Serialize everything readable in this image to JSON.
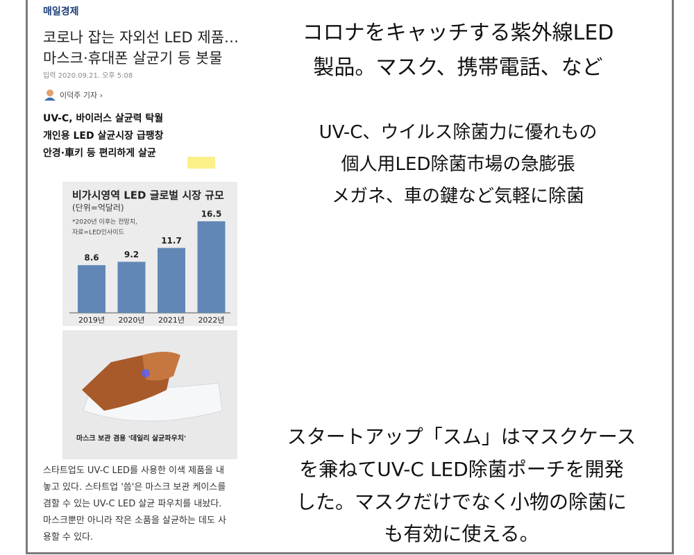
{
  "article": {
    "source": "매일경제",
    "headline": [
      "코로나 잡는 자외선 LED 제품…",
      "마스크·휴대폰 살균기 등 봇물"
    ],
    "date": "입력 2020.09.21. 오후 5:08",
    "reporter": "이덕주 기자 ›",
    "subheads": [
      "UV-C, 바이러스 살균력 탁월",
      "개인용 LED 살균시장 급팽창",
      "안경·車키 등 편리하게 살균"
    ],
    "photo_caption": "마스크 보관 겸용 '데일리 살균파우치'",
    "body": [
      "스타트업도 UV-C LED를 사용한 이색 제품을 내",
      "놓고 있다. 스타트업 '씀'은 마스크 보관 케이스를",
      "겸할 수 있는 UV-C LED 살균 파우치를 내놨다.",
      "마스크뿐만 아니라 작은 소품을 살균하는 데도 사",
      "용할 수 있다."
    ]
  },
  "chart_data": {
    "type": "bar",
    "title": "비가시영역 LED 글로벌 시장 규모",
    "subtitle": "(단위=억달러)",
    "note": [
      "*2020년 이후는 전망치,",
      "자료=LED인사이드"
    ],
    "categories": [
      "2019년",
      "2020년",
      "2021년",
      "2022년"
    ],
    "values": [
      8.6,
      9.2,
      11.7,
      16.5
    ],
    "color": "#6187b6"
  },
  "translation": {
    "title": [
      "コロナをキャッチする紫外線LED",
      "製品。マスク、携帯電話、など"
    ],
    "subheads": [
      "UV-C、ウイルス除菌力に優れもの",
      "個人用LED除菌市場の急膨張",
      "メガネ、車の鍵など気軽に除菌"
    ],
    "body": [
      "スタートアップ「スム」はマスクケース",
      "を兼ねてUV-C LED除菌ポーチを開発",
      "した。マスクだけでなく小物の除菌に",
      "も有効に使える。"
    ]
  }
}
